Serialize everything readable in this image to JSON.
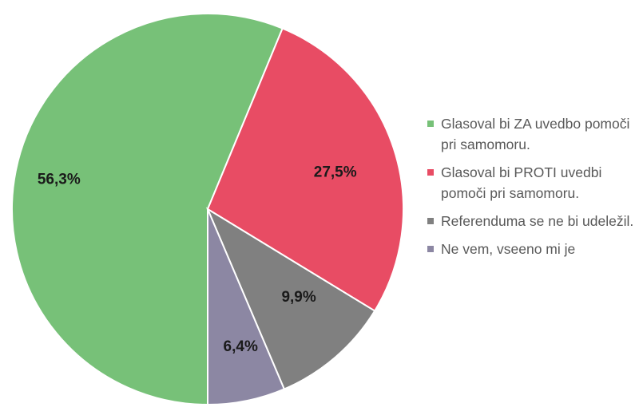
{
  "chart_data": {
    "type": "pie",
    "title": "",
    "slices": [
      {
        "label": "Glasoval bi ZA uvedbo pomoči pri samomoru.",
        "value": 56.3,
        "value_label": "56,3%",
        "color": "#77c178"
      },
      {
        "label": "Glasoval bi PROTI uvedbi pomoči pri samomoru.",
        "value": 27.5,
        "value_label": "27,5%",
        "color": "#e84c64"
      },
      {
        "label": "Referenduma se ne bi udeležil.",
        "value": 9.9,
        "value_label": "9,9%",
        "color": "#808080"
      },
      {
        "label": "Ne vem, vseeno mi je",
        "value": 6.4,
        "value_label": "6,4%",
        "color": "#8c87a3"
      }
    ],
    "start_angle_deg": 180,
    "direction": "clockwise",
    "legend_position": "right"
  }
}
